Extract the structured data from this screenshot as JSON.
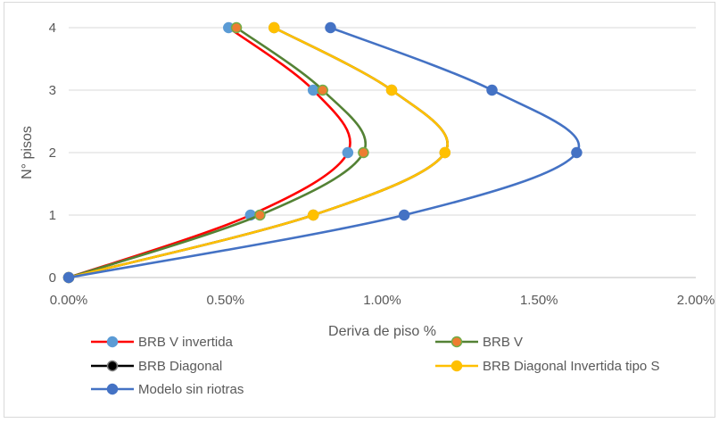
{
  "chart_data": {
    "type": "scatter",
    "title": "",
    "xlabel": "Deriva de piso %",
    "ylabel": "N° pisos",
    "xlim": [
      0,
      2
    ],
    "ylim": [
      0,
      4
    ],
    "x_ticks": [
      "0.00%",
      "0.50%",
      "1.00%",
      "1.50%",
      "2.00%"
    ],
    "y_ticks": [
      "0",
      "1",
      "2",
      "3",
      "4"
    ],
    "x_format": "percent",
    "grid": "horizontal",
    "legend_position": "bottom",
    "series": [
      {
        "name": "BRB V invertida",
        "line_color": "#ff0000",
        "marker_fill": "#5b9bd5",
        "marker_edge": "#5b9bd5",
        "smooth": true,
        "points": [
          [
            0,
            0
          ],
          [
            0.58,
            1
          ],
          [
            0.89,
            2
          ],
          [
            0.78,
            3
          ],
          [
            0.51,
            4
          ]
        ]
      },
      {
        "name": "BRB V",
        "line_color": "#548235",
        "marker_fill": "#ed7d31",
        "marker_edge": "#70ad47",
        "smooth": true,
        "points": [
          [
            0,
            0
          ],
          [
            0.61,
            1
          ],
          [
            0.94,
            2
          ],
          [
            0.81,
            3
          ],
          [
            0.535,
            4
          ]
        ]
      },
      {
        "name": "BRB Diagonal",
        "line_color": "#000000",
        "marker_fill": "#000000",
        "marker_edge": "#7f7f7f",
        "smooth": true,
        "points": [
          [
            0,
            0
          ],
          [
            0.78,
            1
          ],
          [
            1.2,
            2
          ],
          [
            1.03,
            3
          ],
          [
            0.655,
            4
          ]
        ]
      },
      {
        "name": "BRB Diagonal Invertida tipo S",
        "line_color": "#ffc000",
        "marker_fill": "#ffc000",
        "marker_edge": "#ffc000",
        "smooth": true,
        "points": [
          [
            0,
            0
          ],
          [
            0.78,
            1
          ],
          [
            1.2,
            2
          ],
          [
            1.03,
            3
          ],
          [
            0.655,
            4
          ]
        ]
      },
      {
        "name": "Modelo sin riotras",
        "line_color": "#4472c4",
        "marker_fill": "#4472c4",
        "marker_edge": "#4472c4",
        "smooth": true,
        "points": [
          [
            0,
            0
          ],
          [
            1.07,
            1
          ],
          [
            1.62,
            2
          ],
          [
            1.35,
            3
          ],
          [
            0.835,
            4
          ]
        ]
      }
    ]
  }
}
